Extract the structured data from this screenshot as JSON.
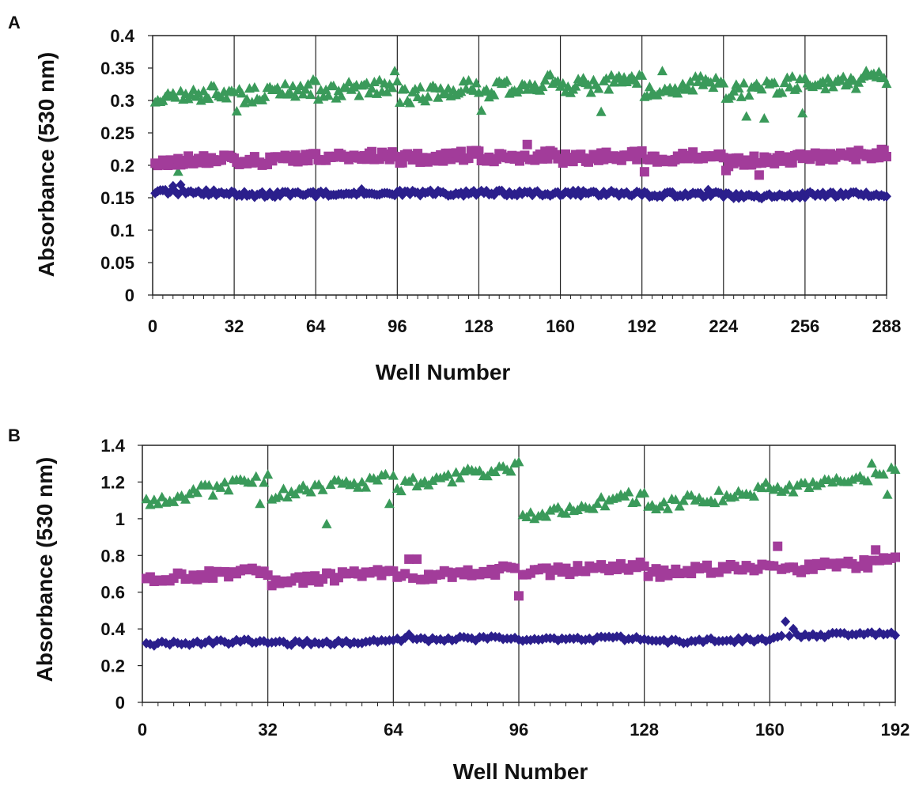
{
  "chart_data": [
    {
      "panel": "A",
      "type": "scatter",
      "xlabel": "Well Number",
      "ylabel": "Absorbance (530 nm)",
      "xlim": [
        0,
        288
      ],
      "ylim": [
        0,
        0.4
      ],
      "xticks": [
        0,
        32,
        64,
        96,
        128,
        160,
        192,
        224,
        256,
        288
      ],
      "yticks": [
        0,
        0.05,
        0.1,
        0.15,
        0.2,
        0.25,
        0.3,
        0.35,
        0.4
      ],
      "ytick_labels": [
        "0",
        "0.05",
        "0.1",
        "0.15",
        "0.2",
        "0.25",
        "0.3",
        "0.35",
        "0.4"
      ],
      "vertical_gridlines_at": [
        32,
        64,
        96,
        128,
        160,
        192,
        224,
        256
      ],
      "n_wells": 288,
      "series": [
        {
          "marker": "triangle",
          "color": "#3a9a5a",
          "block_length": 32,
          "block_base": [
            0.3,
            0.305,
            0.31,
            0.305,
            0.315,
            0.318,
            0.315,
            0.312,
            0.318
          ],
          "block_slope": 0.0005,
          "jitter": 0.012,
          "outliers": [
            [
              10,
              0.19
            ],
            [
              18,
              0.31
            ],
            [
              33,
              0.283
            ],
            [
              95,
              0.345
            ],
            [
              129,
              0.284
            ],
            [
              176,
              0.282
            ],
            [
              200,
              0.345
            ],
            [
              233,
              0.275
            ],
            [
              240,
              0.272
            ],
            [
              255,
              0.28
            ],
            [
              280,
              0.345
            ]
          ]
        },
        {
          "marker": "square",
          "color": "#a23c9a",
          "block_length": 32,
          "block_base": [
            0.205,
            0.205,
            0.21,
            0.21,
            0.21,
            0.21,
            0.21,
            0.205,
            0.212
          ],
          "block_slope": 0.0002,
          "jitter": 0.007,
          "outliers": [
            [
              147,
              0.232
            ],
            [
              193,
              0.19
            ],
            [
              225,
              0.192
            ],
            [
              238,
              0.185
            ]
          ]
        },
        {
          "marker": "diamond",
          "color": "#2b1f8c",
          "block_length": 32,
          "block_base": [
            0.158,
            0.155,
            0.156,
            0.157,
            0.157,
            0.157,
            0.155,
            0.153,
            0.155
          ],
          "block_slope": 0.0,
          "jitter": 0.004,
          "outliers": [
            [
              8,
              0.168
            ],
            [
              11,
              0.17
            ],
            [
              82,
              0.163
            ],
            [
              218,
              0.162
            ]
          ]
        }
      ]
    },
    {
      "panel": "B",
      "type": "scatter",
      "xlabel": "Well Number",
      "ylabel": "Absorbance (530 nm)",
      "xlim": [
        0,
        192
      ],
      "ylim": [
        0,
        1.4
      ],
      "xticks": [
        0,
        32,
        64,
        96,
        128,
        160,
        192
      ],
      "yticks": [
        0,
        0.2,
        0.4,
        0.6,
        0.8,
        1,
        1.2,
        1.4
      ],
      "ytick_labels": [
        "0",
        "0.2",
        "0.4",
        "0.6",
        "0.8",
        "1",
        "1.2",
        "1.4"
      ],
      "vertical_gridlines_at": [
        32,
        64,
        96,
        128,
        160
      ],
      "n_wells": 192,
      "series": [
        {
          "marker": "triangle",
          "color": "#3a9a5a",
          "block_length": 32,
          "block_base": [
            1.1,
            1.12,
            1.18,
            1.02,
            1.06,
            1.14
          ],
          "block_slope": 0.0035,
          "jitter": 0.035,
          "outliers": [
            [
              47,
              0.97
            ],
            [
              63,
              1.08
            ],
            [
              30,
              1.08
            ],
            [
              186,
              1.3
            ],
            [
              190,
              1.13
            ]
          ]
        },
        {
          "marker": "square",
          "color": "#a23c9a",
          "block_length": 32,
          "block_base": [
            0.67,
            0.66,
            0.68,
            0.7,
            0.7,
            0.72
          ],
          "block_slope": 0.0015,
          "jitter": 0.025,
          "outliers": [
            [
              68,
              0.78
            ],
            [
              70,
              0.78
            ],
            [
              96,
              0.58
            ],
            [
              162,
              0.85
            ],
            [
              187,
              0.83
            ]
          ]
        },
        {
          "marker": "diamond",
          "color": "#2b1f8c",
          "block_length": 32,
          "block_base": [
            0.32,
            0.32,
            0.34,
            0.34,
            0.33,
            0.36
          ],
          "block_slope": 0.0004,
          "jitter": 0.012,
          "outliers": [
            [
              164,
              0.44
            ],
            [
              166,
              0.4
            ],
            [
              68,
              0.37
            ]
          ]
        }
      ]
    }
  ]
}
